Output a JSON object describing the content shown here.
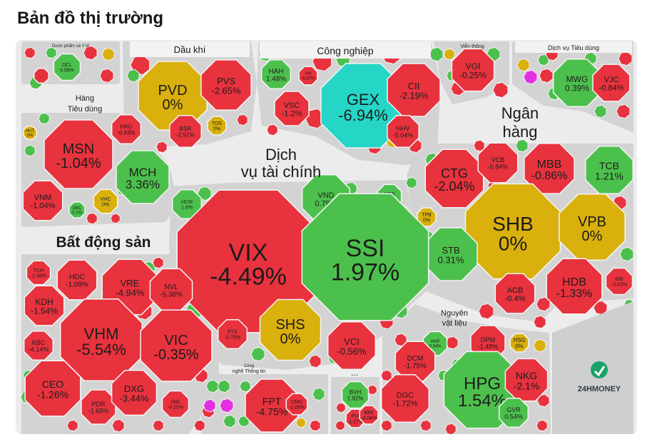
{
  "title": "Bản đồ thị trường",
  "colors": {
    "down": "#e8323e",
    "down_dark": "#d92733",
    "up": "#4cc04c",
    "flat": "#d9b00c",
    "ceiling": "#e22fe2",
    "floor": "#25d6c7",
    "gap": "#ececec",
    "label_bg": "#f2f2f2"
  },
  "chart_data": {
    "type": "treemap",
    "sectors": [
      {
        "name": "Dược phẩm và Y tế",
        "stocks": [
          {
            "ticker": "DCL",
            "change": "0.58%"
          },
          {
            "ticker": "...",
            "change": ""
          }
        ]
      },
      {
        "name": "Dầu khí",
        "stocks": [
          {
            "ticker": "PVD",
            "change": "0%"
          },
          {
            "ticker": "PVS",
            "change": "-2.65%"
          },
          {
            "ticker": "BSR",
            "change": "-2.51%"
          },
          {
            "ticker": "TOS",
            "change": "0%"
          }
        ]
      },
      {
        "name": "Công nghiệp",
        "stocks": [
          {
            "ticker": "HAH",
            "change": "1.48%"
          },
          {
            "ticker": "VIP",
            "change": "-6.87%"
          },
          {
            "ticker": "VSC",
            "change": "-1.2%"
          },
          {
            "ticker": "GEX",
            "change": "-6.94%"
          },
          {
            "ticker": "CII",
            "change": "-2.19%"
          },
          {
            "ticker": "HHV",
            "change": "-5.04%"
          }
        ]
      },
      {
        "name": "Viễn thông",
        "stocks": [
          {
            "ticker": "VGI",
            "change": "-0.25%"
          }
        ]
      },
      {
        "name": "Dịch vụ Tiêu dùng",
        "stocks": [
          {
            "ticker": "MWG",
            "change": "0.39%"
          },
          {
            "ticker": "VJC",
            "change": "-0.84%"
          }
        ]
      },
      {
        "name": "Hàng Tiêu dùng",
        "stocks": [
          {
            "ticker": "HUT",
            "change": "0%"
          },
          {
            "ticker": "MSN",
            "change": "-1.04%"
          },
          {
            "ticker": "HAG",
            "change": "-0.63%"
          },
          {
            "ticker": "MCH",
            "change": "3.36%"
          },
          {
            "ticker": "VNM",
            "change": "-1.04%"
          },
          {
            "ticker": "VHC",
            "change": "0%"
          },
          {
            "ticker": "DBC",
            "change": "0.2%"
          }
        ]
      },
      {
        "name": "Ngân hàng",
        "stocks": [
          {
            "ticker": "CTG",
            "change": "-2.04%"
          },
          {
            "ticker": "VCB",
            "change": "-0.84%"
          },
          {
            "ticker": "MBB",
            "change": "-0.86%"
          },
          {
            "ticker": "TCB",
            "change": "1.21%"
          },
          {
            "ticker": "TPB",
            "change": "0%"
          },
          {
            "ticker": "SHB",
            "change": "0%"
          },
          {
            "ticker": "VPB",
            "change": "0%"
          },
          {
            "ticker": "STB",
            "change": "0.31%"
          },
          {
            "ticker": "ACB",
            "change": "-0.4%"
          },
          {
            "ticker": "HDB",
            "change": "-1.33%"
          },
          {
            "ticker": "EIB",
            "change": "-3.03%"
          }
        ]
      },
      {
        "name": "Dịch vụ tài chính",
        "stocks": [
          {
            "ticker": "HCM",
            "change": "1.6%"
          },
          {
            "ticker": "VIX",
            "change": "-4.49%"
          },
          {
            "ticker": "VND",
            "change": "0.79%"
          },
          {
            "ticker": "MBS",
            "change": "1.4%"
          },
          {
            "ticker": "SSI",
            "change": "1.97%"
          },
          {
            "ticker": "FTS",
            "change": "-0.75%"
          },
          {
            "ticker": "SHS",
            "change": "0%"
          },
          {
            "ticker": "VCI",
            "change": "-0.56%"
          }
        ]
      },
      {
        "name": "Bất động sản",
        "stocks": [
          {
            "ticker": "TCH",
            "change": "-2.38%"
          },
          {
            "ticker": "HDC",
            "change": "-1.09%"
          },
          {
            "ticker": "VRE",
            "change": "-4.94%"
          },
          {
            "ticker": "NVL",
            "change": "-5.38%"
          },
          {
            "ticker": "KDH",
            "change": "-1.54%"
          },
          {
            "ticker": "VHM",
            "change": "-5.54%"
          },
          {
            "ticker": "VIC",
            "change": "-0.35%"
          },
          {
            "ticker": "KBC",
            "change": "-4.14%"
          },
          {
            "ticker": "CEO",
            "change": "-1.26%"
          },
          {
            "ticker": "PDR",
            "change": "-1.65%"
          },
          {
            "ticker": "DXG",
            "change": "-3.44%"
          },
          {
            "ticker": "DIG",
            "change": "-0.25%"
          }
        ]
      },
      {
        "name": "Công nghệ Thông tin",
        "stocks": [
          {
            "ticker": "FPT",
            "change": "-4.75%"
          },
          {
            "ticker": "CMG",
            "change": "-1.06%"
          }
        ]
      },
      {
        "name": "...",
        "stocks": [
          {
            "ticker": "BVH",
            "change": "1.92%"
          },
          {
            "ticker": "PVI",
            "change": "-1.27%"
          },
          {
            "ticker": "BMI",
            "change": "-4.04%"
          }
        ]
      },
      {
        "name": "Nguyên vật liệu",
        "stocks": [
          {
            "ticker": "HHP",
            "change": "0.34%"
          },
          {
            "ticker": "DPM",
            "change": "-1.48%"
          },
          {
            "ticker": "HSG",
            "change": "0%"
          },
          {
            "ticker": "DCM",
            "change": "-1.75%"
          },
          {
            "ticker": "HPG",
            "change": "1.54%"
          },
          {
            "ticker": "NKG",
            "change": "-2.1%"
          },
          {
            "ticker": "DGC",
            "change": "-1.72%"
          },
          {
            "ticker": "GVR",
            "change": "0.54%"
          }
        ]
      }
    ]
  },
  "sectors_text": {
    "duoc": "Dược phẩm và Y tế",
    "daukhi": "Dầu khí",
    "congnghiep": "Công nghiệp",
    "vienthong": "Viễn thông",
    "dvtd": "Dịch vụ Tiêu dùng",
    "hangtd_1": "Hàng",
    "hangtd_2": "Tiêu dùng",
    "nganhang_1": "Ngân",
    "nganhang_2": "hàng",
    "dvtc_1": "Dịch",
    "dvtc_2": "vụ tài chính",
    "bds": "Bất động sản",
    "cntt_1": "Công",
    "cntt_2": "nghệ Thông tin",
    "nvl_1": "Nguyên",
    "nvl_2": "vật liệu",
    "more": "..."
  },
  "logo": {
    "brand": "24HMONEY",
    "icon": "24hmoney-logo-icon"
  }
}
